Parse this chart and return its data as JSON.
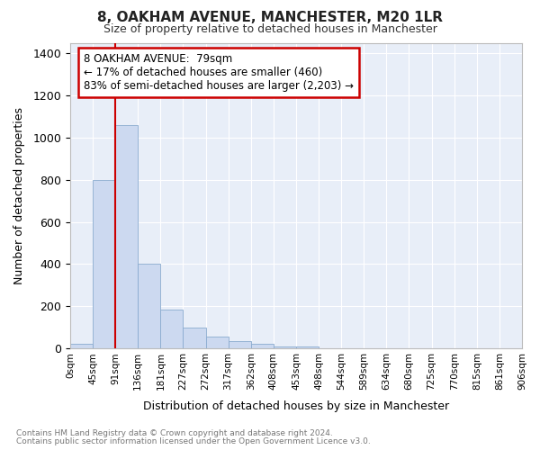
{
  "title": "8, OAKHAM AVENUE, MANCHESTER, M20 1LR",
  "subtitle": "Size of property relative to detached houses in Manchester",
  "xlabel": "Distribution of detached houses by size in Manchester",
  "ylabel": "Number of detached properties",
  "bar_values": [
    20,
    800,
    1060,
    400,
    185,
    100,
    55,
    35,
    20,
    10,
    10,
    0,
    0,
    0,
    0,
    0,
    0,
    0,
    0,
    0
  ],
  "bar_color": "#ccd9f0",
  "bar_edge_color": "#8aabcf",
  "categories": [
    "0sqm",
    "45sqm",
    "91sqm",
    "136sqm",
    "181sqm",
    "227sqm",
    "272sqm",
    "317sqm",
    "362sqm",
    "408sqm",
    "453sqm",
    "498sqm",
    "544sqm",
    "589sqm",
    "634sqm",
    "680sqm",
    "725sqm",
    "770sqm",
    "815sqm",
    "861sqm",
    "906sqm"
  ],
  "ylim": [
    0,
    1450
  ],
  "yticks": [
    0,
    200,
    400,
    600,
    800,
    1000,
    1200,
    1400
  ],
  "red_line_x": 2.0,
  "annotation_title": "8 OAKHAM AVENUE:  79sqm",
  "annotation_line1": "← 17% of detached houses are smaller (460)",
  "annotation_line2": "83% of semi-detached houses are larger (2,203) →",
  "footer_line1": "Contains HM Land Registry data © Crown copyright and database right 2024.",
  "footer_line2": "Contains public sector information licensed under the Open Government Licence v3.0.",
  "fig_bg_color": "#ffffff",
  "plot_bg_color": "#e8eef8",
  "grid_color": "#ffffff"
}
